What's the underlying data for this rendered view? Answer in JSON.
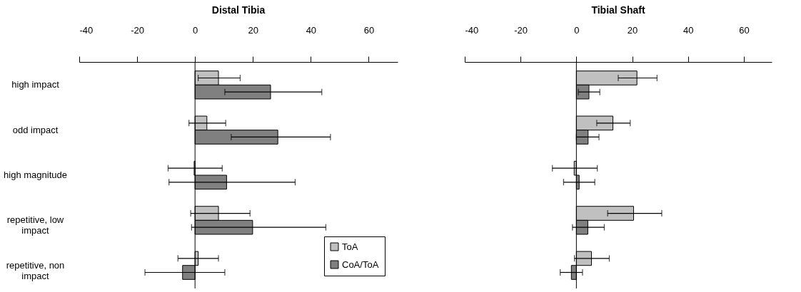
{
  "chart_data": [
    {
      "type": "bar",
      "orientation": "horizontal",
      "title": "Distal Tibia",
      "categories": [
        "high impact",
        "odd impact",
        "high magnitude",
        "repetitive, low impact",
        "repetitive, non impact"
      ],
      "series": [
        {
          "name": "ToA",
          "color": "#c0c0c0",
          "values": [
            8.1,
            4.1,
            -0.3,
            8.1,
            1.1
          ],
          "errors": [
            [
              1.1,
              15.6
            ],
            [
              -2.1,
              10.6
            ],
            [
              -9.3,
              9.4
            ],
            [
              -1.5,
              19.0
            ],
            [
              -5.9,
              8.1
            ]
          ]
        },
        {
          "name": "CoA/ToA",
          "color": "#808080",
          "values": [
            26.1,
            28.6,
            10.9,
            19.9,
            -4.3
          ],
          "errors": [
            [
              10.3,
              43.8
            ],
            [
              12.5,
              46.8
            ],
            [
              -9.0,
              34.6
            ],
            [
              -1.2,
              45.2
            ],
            [
              -17.3,
              10.3
            ]
          ]
        }
      ],
      "xlim": [
        -40,
        70
      ],
      "xticks": [
        -40,
        -20,
        0,
        20,
        40,
        60
      ],
      "ref_lines": [
        {
          "axis": "x",
          "value": 0
        }
      ],
      "grid": false,
      "legend": "bottom right"
    },
    {
      "type": "bar",
      "orientation": "horizontal",
      "title": "Tibial Shaft",
      "categories": [
        "high impact",
        "odd impact",
        "high magnitude",
        "repetitive, low impact",
        "repetitive, non impact"
      ],
      "series": [
        {
          "color": "#c0c0c0",
          "values": [
            21.7,
            13.1,
            -0.8,
            20.5,
            5.4
          ],
          "errors": [
            [
              15.0,
              28.9
            ],
            [
              7.3,
              19.3
            ],
            [
              -8.6,
              7.5
            ],
            [
              11.2,
              30.6
            ],
            [
              -0.7,
              11.8
            ]
          ]
        },
        {
          "color": "#808080",
          "values": [
            4.5,
            4.2,
            1.0,
            4.1,
            -1.8
          ],
          "errors": [
            [
              0.7,
              8.4
            ],
            [
              0.0,
              8.1
            ],
            [
              -4.6,
              6.6
            ],
            [
              -1.4,
              10.0
            ],
            [
              -5.8,
              2.2
            ]
          ]
        }
      ],
      "xlim": [
        -40,
        70
      ],
      "xticks": [
        -40,
        -20,
        0,
        20,
        40,
        60
      ],
      "ref_lines": [
        {
          "axis": "x",
          "value": 0
        }
      ],
      "grid": false,
      "legend": false,
      "tick_labels": "x"
    }
  ]
}
